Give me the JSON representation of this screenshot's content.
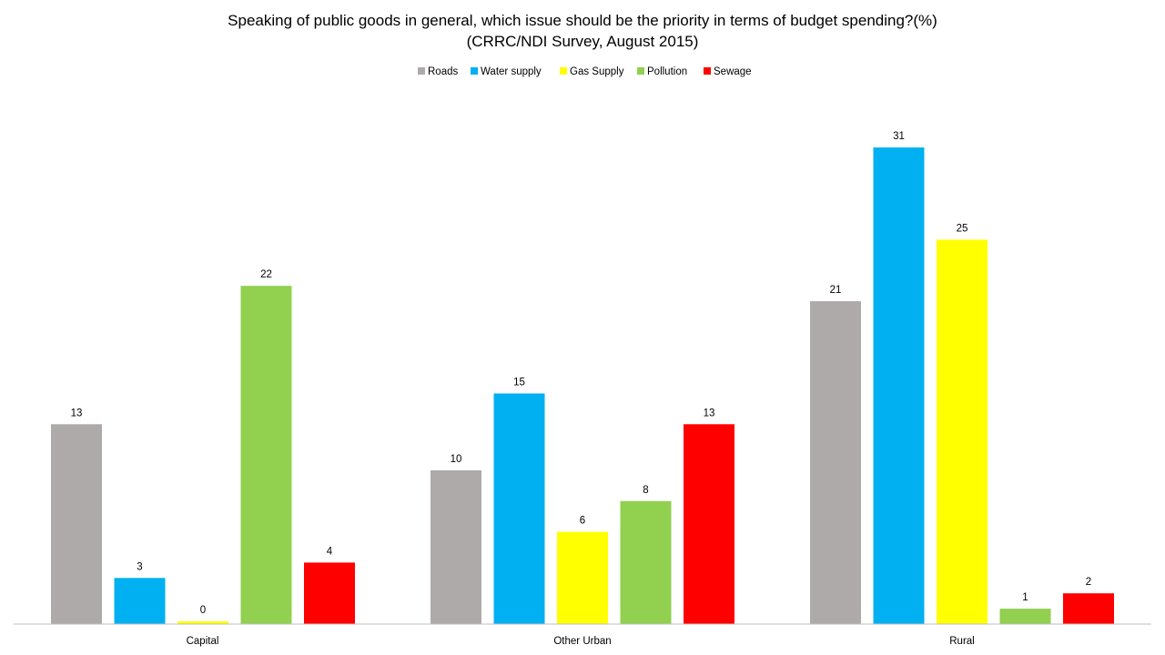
{
  "chart_data": {
    "type": "bar",
    "title": "Speaking of public goods in general, which issue should be the priority in terms of budget spending?(%)",
    "subtitle": "(CRRC/NDI Survey, August 2015)",
    "categories": [
      "Capital",
      "Other Urban",
      "Rural"
    ],
    "series": [
      {
        "name": "Roads",
        "color": "#ADAAA9",
        "values": [
          13,
          10,
          21
        ]
      },
      {
        "name": "Water supply",
        "color": "#00B0F0",
        "values": [
          3,
          15,
          31
        ]
      },
      {
        "name": "Gas Supply",
        "color": "#FFFF00",
        "values": [
          0,
          6,
          25
        ]
      },
      {
        "name": "Pollution",
        "color": "#92D050",
        "values": [
          22,
          8,
          1
        ]
      },
      {
        "name": "Sewage",
        "color": "#FF0000",
        "values": [
          4,
          13,
          2
        ]
      }
    ],
    "ylim": [
      0,
      31
    ],
    "grid": false,
    "legend_position": "top-center",
    "xlabel": "",
    "ylabel": ""
  }
}
